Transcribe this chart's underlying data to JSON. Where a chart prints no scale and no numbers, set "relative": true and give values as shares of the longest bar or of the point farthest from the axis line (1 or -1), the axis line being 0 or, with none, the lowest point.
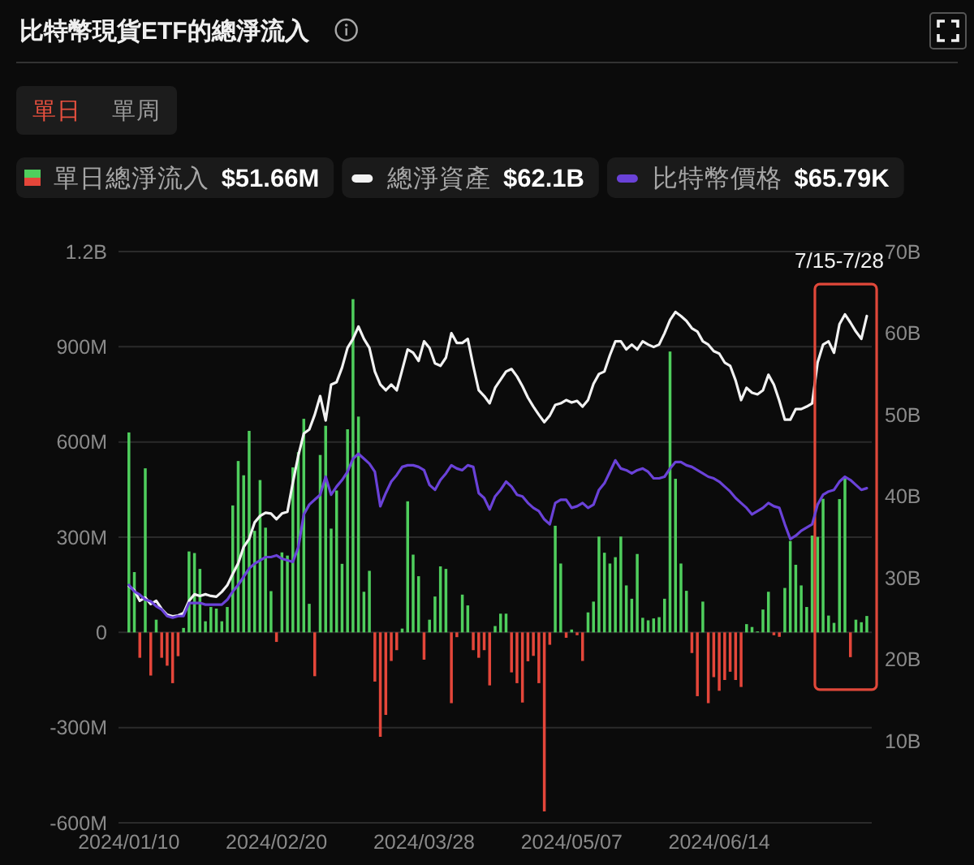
{
  "chart_data": [
    {
      "type": "bar",
      "title": "比特幣現貨ETF的總淨流入",
      "annotations": [
        "單日",
        "單周",
        "7/15-7/28"
      ],
      "legend": "top left",
      "grid": "y",
      "categories": [
        "2024/01/10",
        null,
        null,
        null,
        null,
        null,
        null,
        null,
        null,
        null,
        null,
        null,
        null,
        null,
        null,
        null,
        null,
        null,
        null,
        null,
        null,
        null,
        null,
        null,
        null,
        null,
        null,
        "2024/02/20",
        null,
        null,
        null,
        null,
        null,
        null,
        null,
        null,
        null,
        null,
        null,
        null,
        null,
        null,
        null,
        null,
        null,
        null,
        null,
        null,
        null,
        null,
        null,
        null,
        null,
        null,
        "2024/03/28",
        null,
        null,
        null,
        null,
        null,
        null,
        null,
        null,
        null,
        null,
        null,
        null,
        null,
        null,
        null,
        null,
        null,
        null,
        null,
        null,
        null,
        null,
        null,
        null,
        null,
        null,
        "2024/05/07",
        null,
        null,
        null,
        null,
        null,
        null,
        null,
        null,
        null,
        null,
        null,
        null,
        null,
        null,
        null,
        null,
        null,
        null,
        null,
        null,
        null,
        null,
        null,
        null,
        null,
        null,
        "2024/06/14",
        null,
        null,
        null,
        null,
        null,
        null,
        null,
        null,
        null,
        null,
        null,
        null,
        null,
        null,
        null,
        null,
        null,
        null,
        null,
        null,
        null,
        null,
        null,
        null,
        null,
        null,
        null
      ],
      "ylim": [
        -600000000,
        1200000000
      ],
      "yticks": [
        {
          "value": -600000000,
          "label": "-600M"
        },
        {
          "value": -300000000,
          "label": "-300M"
        },
        0,
        {
          "value": 300000000,
          "label": "300M"
        },
        {
          "value": 600000000,
          "label": "600M"
        },
        {
          "value": 900000000,
          "label": "900M"
        },
        {
          "value": 1200000000,
          "label": "1.2B"
        }
      ],
      "y2lim": [
        0,
        70
      ],
      "y2ticks": [
        {
          "value": 10,
          "label": "10B"
        },
        {
          "value": 20,
          "label": "20B"
        },
        {
          "value": 30,
          "label": "30B"
        },
        {
          "value": 40,
          "label": "40B"
        },
        {
          "value": 50,
          "label": "50B"
        },
        {
          "value": 60,
          "label": "60B"
        },
        {
          "value": 70,
          "label": "70B"
        }
      ],
      "series": [
        {
          "name": "單日總淨流入 **$51.66M**",
          "values": [
            630000000,
            190000000,
            -80000000,
            517000000,
            -136000000,
            40000000,
            -80000000,
            -105000000,
            -160000000,
            -75000000,
            14000000,
            255000000,
            250000000,
            200000000,
            35000000,
            80000000,
            75000000,
            35000000,
            80000000,
            400000000,
            540000000,
            495000000,
            635000000,
            320000000,
            480000000,
            330000000,
            130000000,
            -30000000,
            252000000,
            242000000,
            520000000,
            568000000,
            673000000,
            90000000,
            -138000000,
            559000000,
            651000000,
            327000000,
            447000000,
            216000000,
            640000000,
            1050000000,
            680000000,
            128000000,
            194000000,
            -155000000,
            -329000000,
            -260000000,
            -90000000,
            -56000000,
            12000000,
            413000000,
            245000000,
            177000000,
            -86000000,
            40000000,
            113000000,
            208000000,
            200000000,
            -223000000,
            -15000000,
            119000000,
            85000000,
            -56000000,
            -80000000,
            -56000000,
            -167000000,
            20000000,
            59000000,
            59000000,
            -126000000,
            -160000000,
            -221000000,
            -91000000,
            -74000000,
            -160000000,
            -564000000,
            -39000000,
            336000000,
            217000000,
            -17000000,
            9000000,
            -9000000,
            -90000000,
            63000000,
            97000000,
            302000000,
            251000000,
            217000000,
            237000000,
            302000000,
            148000000,
            106000000,
            247000000,
            46000000,
            38000000,
            44000000,
            48000000,
            106000000,
            885000000,
            484000000,
            217000000,
            131000000,
            -65000000,
            -201000000,
            97000000,
            -223000000,
            -141000000,
            -184000000,
            -150000000,
            -124000000,
            -150000000,
            -172000000,
            26000000,
            17000000,
            3000000,
            72000000,
            128000000,
            -9000000,
            -14000000,
            140000000,
            288000000,
            213000000,
            148000000,
            80000000,
            305000000,
            301000000,
            421000000,
            53000000,
            30000000,
            420000000,
            486000000,
            -78000000,
            40000000,
            32000000,
            51660000
          ],
          "colors": [
            "#4fce5d",
            "#4fce5d",
            "#e4463a",
            "#4fce5d",
            "#e4463a",
            "#4fce5d",
            "#e4463a",
            "#e4463a",
            "#e4463a",
            "#e4463a",
            "#4fce5d",
            "#4fce5d",
            "#4fce5d",
            "#4fce5d",
            "#4fce5d",
            "#4fce5d",
            "#4fce5d",
            "#4fce5d",
            "#4fce5d",
            "#4fce5d",
            "#4fce5d",
            "#4fce5d",
            "#4fce5d",
            "#4fce5d",
            "#4fce5d",
            "#4fce5d",
            "#4fce5d",
            "#e4463a",
            "#4fce5d",
            "#4fce5d",
            "#4fce5d",
            "#4fce5d",
            "#4fce5d",
            "#4fce5d",
            "#e4463a",
            "#4fce5d",
            "#4fce5d",
            "#4fce5d",
            "#4fce5d",
            "#4fce5d",
            "#4fce5d",
            "#4fce5d",
            "#4fce5d",
            "#4fce5d",
            "#4fce5d",
            "#e4463a",
            "#e4463a",
            "#e4463a",
            "#e4463a",
            "#e4463a",
            "#4fce5d",
            "#4fce5d",
            "#4fce5d",
            "#4fce5d",
            "#e4463a",
            "#4fce5d",
            "#4fce5d",
            "#4fce5d",
            "#4fce5d",
            "#e4463a",
            "#e4463a",
            "#4fce5d",
            "#4fce5d",
            "#e4463a",
            "#e4463a",
            "#e4463a",
            "#e4463a",
            "#4fce5d",
            "#4fce5d",
            "#4fce5d",
            "#e4463a",
            "#e4463a",
            "#e4463a",
            "#e4463a",
            "#e4463a",
            "#e4463a",
            "#e4463a",
            "#e4463a",
            "#4fce5d",
            "#4fce5d",
            "#e4463a",
            "#4fce5d",
            "#e4463a",
            "#e4463a",
            "#4fce5d",
            "#4fce5d",
            "#4fce5d",
            "#4fce5d",
            "#4fce5d",
            "#4fce5d",
            "#4fce5d",
            "#4fce5d",
            "#4fce5d",
            "#4fce5d",
            "#4fce5d",
            "#4fce5d",
            "#4fce5d",
            "#4fce5d",
            "#4fce5d",
            "#4fce5d",
            "#4fce5d",
            "#4fce5d",
            "#4fce5d",
            "#e4463a",
            "#e4463a",
            "#4fce5d",
            "#e4463a",
            "#e4463a",
            "#e4463a",
            "#e4463a",
            "#e4463a",
            "#e4463a",
            "#e4463a",
            "#4fce5d",
            "#4fce5d",
            "#4fce5d",
            "#4fce5d",
            "#4fce5d",
            "#e4463a",
            "#e4463a",
            "#4fce5d",
            "#4fce5d",
            "#4fce5d",
            "#4fce5d",
            "#4fce5d",
            "#4fce5d",
            "#4fce5d",
            "#4fce5d",
            "#4fce5d",
            "#4fce5d",
            "#4fce5d",
            "#4fce5d",
            "#e4463a",
            "#4fce5d",
            "#4fce5d",
            "#4fce5d"
          ]
        },
        {
          "name": "總淨資產 **$62.1B**",
          "type": "line",
          "axis": "y2",
          "color": "#f2f2f2",
          "values": [
            29.0,
            28.5,
            27.2,
            27.6,
            26.8,
            27.2,
            26.2,
            25.5,
            25.3,
            25.4,
            25.7,
            27.2,
            28.0,
            27.8,
            28.0,
            27.8,
            27.7,
            28.3,
            29.1,
            30.5,
            31.8,
            33.8,
            34.8,
            36.8,
            37.6,
            38.0,
            37.9,
            37.2,
            37.9,
            38.1,
            41.7,
            45.0,
            47.7,
            48.2,
            50.0,
            52.3,
            49.3,
            53.7,
            54.0,
            55.8,
            58.2,
            59.3,
            60.8,
            59.3,
            58.2,
            55.3,
            53.7,
            53.0,
            53.7,
            53.0,
            55.5,
            58.0,
            57.6,
            56.6,
            59.0,
            58.2,
            56.3,
            56.0,
            57.0,
            60.0,
            58.8,
            58.8,
            59.3,
            56.0,
            53.0,
            52.3,
            51.4,
            53.3,
            54.3,
            55.3,
            55.6,
            54.7,
            53.5,
            52.1,
            51.0,
            50.0,
            49.1,
            49.9,
            51.2,
            51.4,
            51.8,
            51.5,
            51.7,
            51.0,
            51.8,
            53.8,
            55.0,
            55.3,
            57.3,
            59.0,
            59.0,
            58.0,
            58.6,
            58.0,
            59.0,
            58.6,
            58.3,
            58.6,
            60.0,
            61.6,
            62.6,
            62.1,
            61.5,
            60.6,
            60.2,
            59.0,
            58.6,
            57.8,
            57.5,
            56.4,
            56.0,
            54.2,
            51.8,
            53.3,
            52.7,
            52.5,
            53.0,
            54.9,
            53.7,
            51.7,
            49.4,
            49.4,
            50.7,
            50.7,
            51.0,
            51.4,
            56.4,
            58.6,
            59.0,
            57.6,
            61.1,
            62.3,
            61.3,
            60.2,
            59.3,
            62.1
          ]
        }
      ]
    },
    {
      "type": "line",
      "relative": true,
      "legend": "top right",
      "categories": [
        null,
        null,
        null,
        null,
        null,
        null,
        null,
        null,
        null,
        null,
        null,
        null,
        null,
        null,
        null,
        null,
        null,
        null,
        null,
        null,
        null,
        null,
        null,
        null,
        null,
        null,
        null,
        null,
        null,
        null,
        null,
        null,
        null,
        null,
        null,
        null,
        null,
        null,
        null,
        null,
        null,
        null,
        null,
        null,
        null,
        null,
        null,
        null,
        null,
        null,
        null,
        null,
        null,
        null,
        null,
        null,
        null,
        null,
        null,
        null,
        null,
        null,
        null,
        null,
        null,
        null,
        null,
        null,
        null,
        null,
        null,
        null,
        null,
        null,
        null,
        null,
        null,
        null,
        null,
        null,
        null,
        null,
        null,
        null,
        null,
        null,
        null,
        null,
        null,
        null,
        null,
        null,
        null,
        null,
        null,
        null,
        null,
        null,
        null,
        null,
        null,
        null,
        null,
        null,
        null,
        null,
        null,
        null,
        null,
        null,
        null,
        null,
        null,
        null,
        null,
        null,
        null,
        null,
        null,
        null,
        null,
        null,
        null,
        null,
        null,
        null,
        null,
        null,
        null,
        null,
        null,
        null,
        null,
        null,
        null,
        null
      ],
      "series": [
        {
          "name": "比特幣價格 **$65.79K**",
          "color": "#6a42d8",
          "values": [
            0.2,
            0.16,
            0.14,
            0.11,
            0.1,
            0.07,
            0.05,
            0.01,
            0,
            0.01,
            0.01,
            0.09,
            0.09,
            0.09,
            0.08,
            0.08,
            0.08,
            0.08,
            0.11,
            0.16,
            0.2,
            0.25,
            0.3,
            0.33,
            0.35,
            0.37,
            0.37,
            0.38,
            0.36,
            0.35,
            0.34,
            0.43,
            0.63,
            0.69,
            0.72,
            0.75,
            0.86,
            0.75,
            0.8,
            0.84,
            0.89,
            0.97,
            1,
            0.97,
            0.94,
            0.89,
            0.68,
            0.76,
            0.83,
            0.87,
            0.92,
            0.93,
            0.93,
            0.92,
            0.9,
            0.81,
            0.78,
            0.84,
            0.88,
            0.93,
            0.91,
            0.9,
            0.93,
            0.92,
            0.76,
            0.73,
            0.66,
            0.74,
            0.78,
            0.83,
            0.8,
            0.75,
            0.74,
            0.7,
            0.67,
            0.65,
            0.6,
            0.57,
            0.7,
            0.72,
            0.72,
            0.67,
            0.68,
            0.7,
            0.67,
            0.69,
            0.78,
            0.82,
            0.89,
            0.96,
            0.91,
            0.9,
            0.88,
            0.9,
            0.91,
            0.89,
            0.85,
            0.85,
            0.86,
            0.91,
            0.95,
            0.95,
            0.93,
            0.92,
            0.9,
            0.88,
            0.86,
            0.85,
            0.83,
            0.8,
            0.77,
            0.73,
            0.7,
            0.67,
            0.63,
            0.65,
            0.67,
            0.7,
            0.68,
            0.67,
            0.57,
            0.48,
            0.5,
            0.53,
            0.55,
            0.57,
            0.69,
            0.75,
            0.77,
            0.78,
            0.83,
            0.86,
            0.84,
            0.81,
            0.78,
            0.79
          ]
        }
      ]
    }
  ]
}
